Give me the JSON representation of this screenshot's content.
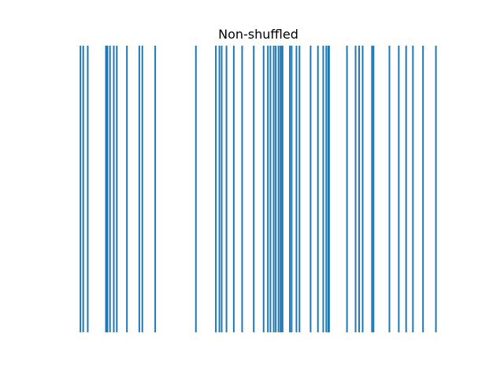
{
  "chart_data": {
    "type": "eventplot",
    "title": "Non-shuffled",
    "axis": "off",
    "color": "#1f77b4",
    "positions": [
      0.02,
      0.031,
      0.049,
      0.121,
      0.127,
      0.137,
      0.152,
      0.164,
      0.204,
      0.253,
      0.265,
      0.316,
      0.477,
      0.556,
      0.57,
      0.579,
      0.598,
      0.627,
      0.66,
      0.706,
      0.745,
      0.762,
      0.772,
      0.785,
      0.793,
      0.804,
      0.812,
      0.818,
      0.82,
      0.849,
      0.856,
      0.875,
      0.887,
      0.931,
      0.96,
      0.981,
      0.993,
      1.001,
      1.004,
      1.075,
      1.109,
      1.123,
      1.137,
      1.174,
      1.18,
      1.243,
      1.28,
      1.309,
      1.336,
      1.376,
      1.427
    ],
    "xlim": [
      -0.049,
      1.497
    ],
    "ylim": [
      0.5,
      1.5
    ],
    "lineoffset": 1,
    "linelength": 1
  }
}
